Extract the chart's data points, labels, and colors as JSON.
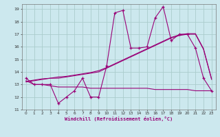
{
  "xlabel": "Windchill (Refroidissement éolien,°C)",
  "bg_color": "#cce8ee",
  "grid_color": "#aacccc",
  "line_color": "#990077",
  "xlim": [
    -0.5,
    23.5
  ],
  "ylim": [
    11,
    19.4
  ],
  "xticks": [
    0,
    1,
    2,
    3,
    4,
    5,
    6,
    7,
    8,
    9,
    10,
    11,
    12,
    13,
    14,
    15,
    16,
    17,
    18,
    19,
    20,
    21,
    22,
    23
  ],
  "yticks": [
    11,
    12,
    13,
    14,
    15,
    16,
    17,
    18,
    19
  ],
  "main_y": [
    13.5,
    13.0,
    13.0,
    13.0,
    11.5,
    12.0,
    12.5,
    13.5,
    12.0,
    12.0,
    14.5,
    18.7,
    18.9,
    15.9,
    15.9,
    16.0,
    18.3,
    19.2,
    16.5,
    17.0,
    17.0,
    15.9,
    13.5,
    12.5
  ],
  "low_y": [
    13.3,
    13.0,
    13.0,
    12.9,
    12.8,
    12.8,
    12.8,
    12.8,
    12.7,
    12.7,
    12.7,
    12.7,
    12.7,
    12.7,
    12.7,
    12.7,
    12.6,
    12.6,
    12.6,
    12.6,
    12.6,
    12.5,
    12.5,
    12.5
  ],
  "trend1_y": [
    13.2,
    13.3,
    13.4,
    13.5,
    13.5,
    13.6,
    13.7,
    13.8,
    13.9,
    14.0,
    14.3,
    14.6,
    14.9,
    15.2,
    15.5,
    15.8,
    16.1,
    16.4,
    16.7,
    16.9,
    17.0,
    17.0,
    15.8,
    13.4
  ],
  "trend2_y": [
    13.25,
    13.35,
    13.45,
    13.5,
    13.6,
    13.65,
    13.75,
    13.85,
    13.95,
    14.1,
    14.35,
    14.65,
    14.95,
    15.25,
    15.55,
    15.85,
    16.15,
    16.45,
    16.75,
    16.95,
    17.05,
    17.05,
    15.85,
    13.45
  ]
}
